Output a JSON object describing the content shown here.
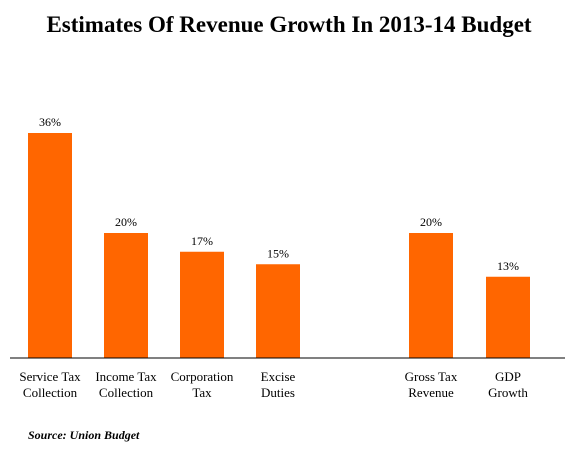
{
  "chart_data": {
    "type": "bar",
    "title": "Estimates Of Revenue Growth In 2013-14 Budget",
    "categories": [
      [
        "Service Tax",
        "Collection"
      ],
      [
        "Income Tax",
        "Collection"
      ],
      [
        "Corporation",
        "Tax"
      ],
      [
        "Excise",
        "Duties"
      ],
      [
        "Gross Tax",
        "Revenue"
      ],
      [
        "GDP",
        "Growth"
      ]
    ],
    "values": [
      36,
      20,
      17,
      15,
      20,
      13
    ],
    "value_labels": [
      "36%",
      "20%",
      "17%",
      "15%",
      "20%",
      "13%"
    ],
    "ylim": [
      0,
      40
    ],
    "grid": false,
    "bar_color": "#ff6600",
    "source": "Source: Union Budget"
  }
}
